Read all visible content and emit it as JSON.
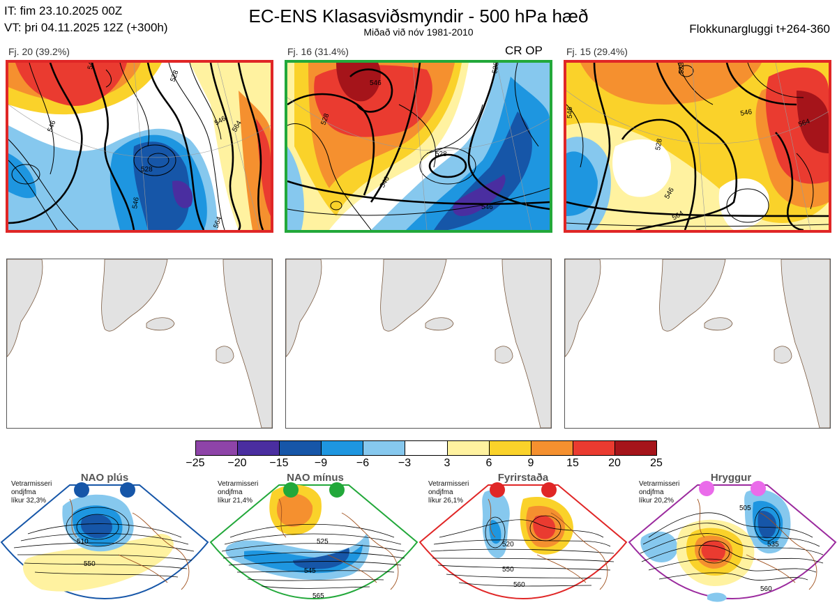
{
  "header": {
    "init_time": "IT: fim 23.10.2025 00Z",
    "valid_time": "VT: þri 04.11.2025 12Z  (+300h)",
    "title": "EC-ENS Klasasviðsmyndir - 500 hPa hæð",
    "subtitle": "Miðað við nóv 1981-2010",
    "window": "Flokkunargluggi t+264-360"
  },
  "clusters": [
    {
      "label": "Fj. 20 (39.2%)",
      "border_color": "#e02626",
      "contours": [
        "546",
        "528",
        "546",
        "546",
        "564",
        "546",
        "564",
        "528"
      ],
      "op_label": ""
    },
    {
      "label": "Fj. 16 (31.4%)",
      "border_color": "#22a83a",
      "contours": [
        "546",
        "528",
        "528",
        "546",
        "546",
        "528"
      ],
      "op_label": "CR OP"
    },
    {
      "label": "Fj. 15 (29.4%)",
      "border_color": "#e02626",
      "contours": [
        "546",
        "546",
        "564",
        "528",
        "546",
        "564",
        "528"
      ],
      "op_label": ""
    }
  ],
  "colorbar": {
    "ticks": [
      "−25",
      "−20",
      "−15",
      "−9",
      "−6",
      "−3",
      "3",
      "6",
      "9",
      "15",
      "20",
      "25"
    ],
    "colors": [
      "#8e44a8",
      "#4a2ea0",
      "#1656a8",
      "#1e96e0",
      "#86c8ee",
      "#ffffff",
      "#fff2a0",
      "#fad22a",
      "#f5902f",
      "#ea3b30",
      "#a5141a"
    ]
  },
  "regimes": [
    {
      "name": "NAO plús",
      "note": [
        "Vetrarmisseri",
        "ondjfma",
        "líkur 32,3%"
      ],
      "color": "#1656a8",
      "contours": [
        "510",
        "550"
      ]
    },
    {
      "name": "NAO mínus",
      "note": [
        "Vetrarmisseri",
        "ondjfma",
        "líkur 21,4%"
      ],
      "color": "#22a83a",
      "contours": [
        "525",
        "545",
        "565"
      ]
    },
    {
      "name": "Fyrirstaða",
      "note": [
        "Vetrarmisseri",
        "ondjfma",
        "líkur 26,1%"
      ],
      "color": "#e02626",
      "contours": [
        "520",
        "550",
        "560"
      ]
    },
    {
      "name": "Hryggur",
      "note": [
        "Vetrarmisseri",
        "ondjfma",
        "líkur 20,2%"
      ],
      "color": "#9b2a9e",
      "contours": [
        "505",
        "535",
        "560"
      ]
    }
  ]
}
